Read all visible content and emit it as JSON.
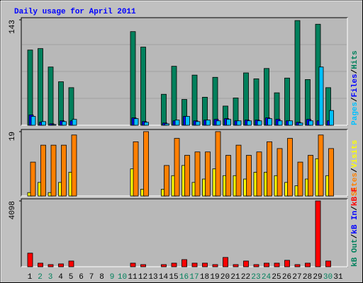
{
  "chart_data": {
    "type": "bar",
    "title": "Daily usage for April 2011",
    "categories": [
      "1",
      "2",
      "3",
      "4",
      "5",
      "6",
      "7",
      "8",
      "9",
      "10",
      "11",
      "12",
      "13",
      "14",
      "15",
      "16",
      "17",
      "18",
      "19",
      "20",
      "21",
      "22",
      "23",
      "24",
      "25",
      "26",
      "27",
      "28",
      "29",
      "30",
      "31"
    ],
    "category_colors": [
      "#000000",
      "#00805c",
      "#00805c",
      "#000000",
      "#000000",
      "#000000",
      "#000000",
      "#000000",
      "#00805c",
      "#00805c",
      "#000000",
      "#000000",
      "#000000",
      "#000000",
      "#000000",
      "#00805c",
      "#00805c",
      "#000000",
      "#000000",
      "#000000",
      "#000000",
      "#000000",
      "#00805c",
      "#00805c",
      "#000000",
      "#000000",
      "#000000",
      "#000000",
      "#000000",
      "#00805c",
      "#000000"
    ],
    "panels": [
      {
        "ylim": [
          0,
          143
        ],
        "yticks": [
          143
        ],
        "grid": true,
        "series": [
          {
            "name": "Hits",
            "color": "#00805c",
            "values": [
              102,
              104,
              79,
              59,
              51,
              null,
              null,
              null,
              null,
              null,
              127,
              106,
              null,
              42,
              80,
              35,
              68,
              38,
              65,
              26,
              37,
              71,
              63,
              77,
              44,
              64,
              142,
              62,
              137,
              51,
              null
            ]
          },
          {
            "name": "Files",
            "color": "#0000ff",
            "values": [
              14,
              4,
              2,
              6,
              6,
              null,
              null,
              null,
              null,
              null,
              10,
              5,
              null,
              3,
              6,
              12,
              6,
              7,
              8,
              9,
              6,
              7,
              7,
              10,
              8,
              6,
              4,
              8,
              6,
              6,
              null
            ]
          },
          {
            "name": "Pages",
            "color": "#00c0ff",
            "values": [
              12,
              5,
              1,
              5,
              8,
              null,
              null,
              null,
              null,
              null,
              9,
              4,
              null,
              2,
              7,
              12,
              5,
              7,
              6,
              8,
              6,
              6,
              6,
              9,
              6,
              6,
              3,
              6,
              79,
              20,
              null
            ]
          }
        ]
      },
      {
        "ylim": [
          0,
          19
        ],
        "yticks": [
          19
        ],
        "grid": true,
        "series": [
          {
            "name": "Visits",
            "color": "#ffff00",
            "values": [
              1,
              4,
              1,
              4,
              7,
              null,
              null,
              null,
              null,
              null,
              8,
              2,
              null,
              2,
              6,
              9,
              4,
              5,
              8,
              6,
              6,
              5,
              7,
              7,
              6,
              4,
              3,
              5,
              11,
              6,
              null
            ]
          },
          {
            "name": "Sites",
            "color": "#ff8000",
            "values": [
              10,
              15,
              15,
              15,
              18,
              null,
              null,
              null,
              null,
              null,
              16,
              19,
              null,
              9,
              17,
              12,
              13,
              13,
              19,
              12,
              15,
              12,
              13,
              16,
              14,
              17,
              10,
              12,
              18,
              14,
              null
            ]
          }
        ]
      },
      {
        "ylim": [
          0,
          4098
        ],
        "yticks": [
          4098
        ],
        "grid": true,
        "series": [
          {
            "name": "kB F",
            "color": "#ff0000",
            "values": [
              846,
              223,
              134,
              178,
              356,
              null,
              null,
              null,
              null,
              null,
              223,
              134,
              null,
              134,
              223,
              445,
              223,
              223,
              134,
              579,
              134,
              356,
              134,
              223,
              223,
              401,
              134,
              223,
              4098,
              356,
              null
            ]
          },
          {
            "name": "kB In",
            "color": "#0000ff",
            "values": [
              null,
              null,
              null,
              null,
              null,
              null,
              null,
              null,
              null,
              null,
              null,
              null,
              null,
              null,
              null,
              null,
              null,
              null,
              null,
              null,
              null,
              null,
              null,
              null,
              null,
              null,
              null,
              null,
              null,
              null,
              null
            ]
          },
          {
            "name": "kB Out",
            "color": "#00805c",
            "values": [
              null,
              null,
              null,
              null,
              null,
              null,
              null,
              null,
              null,
              null,
              null,
              null,
              null,
              null,
              null,
              null,
              null,
              null,
              null,
              null,
              null,
              null,
              null,
              null,
              null,
              null,
              null,
              null,
              null,
              null,
              null
            ]
          }
        ]
      }
    ]
  }
}
